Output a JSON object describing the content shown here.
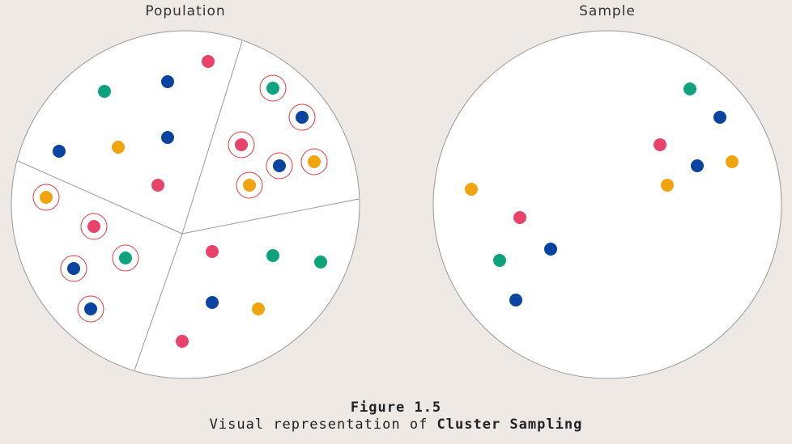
{
  "population": {
    "title": "Population",
    "clusters": [
      {
        "name": "top-left",
        "selected": false,
        "points": [
          {
            "color": "pink"
          },
          {
            "color": "blue"
          },
          {
            "color": "green"
          },
          {
            "color": "blue"
          },
          {
            "color": "orange"
          },
          {
            "color": "blue"
          },
          {
            "color": "pink"
          }
        ]
      },
      {
        "name": "top-right",
        "selected": true,
        "points": [
          {
            "color": "green"
          },
          {
            "color": "blue"
          },
          {
            "color": "pink"
          },
          {
            "color": "blue"
          },
          {
            "color": "orange"
          },
          {
            "color": "orange"
          }
        ]
      },
      {
        "name": "left",
        "selected": true,
        "points": [
          {
            "color": "orange"
          },
          {
            "color": "pink"
          },
          {
            "color": "blue"
          },
          {
            "color": "green"
          },
          {
            "color": "blue"
          }
        ]
      },
      {
        "name": "bottom-right",
        "selected": false,
        "points": [
          {
            "color": "pink"
          },
          {
            "color": "green"
          },
          {
            "color": "green"
          },
          {
            "color": "blue"
          },
          {
            "color": "orange"
          },
          {
            "color": "pink"
          }
        ]
      }
    ]
  },
  "sample": {
    "title": "Sample",
    "points": [
      {
        "color": "green"
      },
      {
        "color": "blue"
      },
      {
        "color": "pink"
      },
      {
        "color": "blue"
      },
      {
        "color": "orange"
      },
      {
        "color": "orange"
      },
      {
        "color": "orange"
      },
      {
        "color": "pink"
      },
      {
        "color": "green"
      },
      {
        "color": "blue"
      },
      {
        "color": "blue"
      }
    ]
  },
  "colors": {
    "pink": "#e8446b",
    "blue": "#0a44a0",
    "green": "#0ea37c",
    "orange": "#f0a50f",
    "ring": "#e03a3a",
    "circle_fill": "#ffffff",
    "circle_stroke": "#9a9a9a",
    "background": "#efe9e6"
  },
  "caption": {
    "figure": "Figure 1.5",
    "prefix": "Visual representation of ",
    "emphasis": "Cluster Sampling"
  }
}
